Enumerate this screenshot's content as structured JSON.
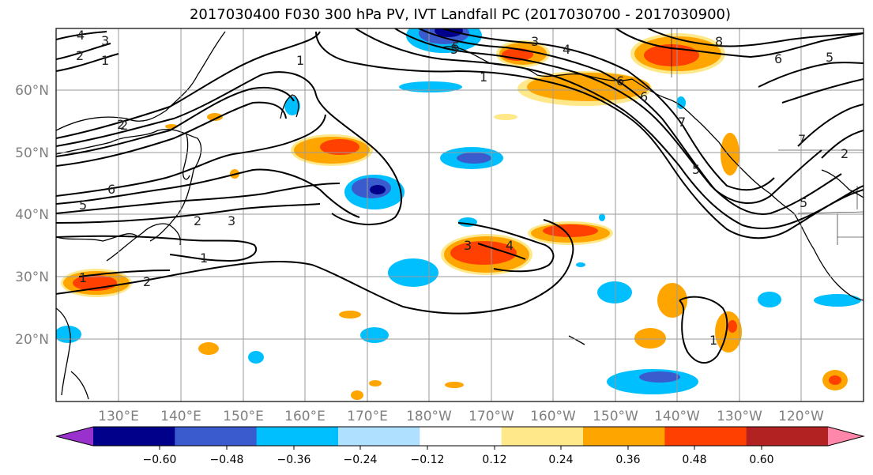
{
  "title": "2017030400 F030 300 hPa PV, IVT Landfall PC (2017030700 - 2017030900)",
  "lon_labels": [
    "130°E",
    "140°E",
    "150°E",
    "160°E",
    "170°E",
    "180°W",
    "170°W",
    "160°W",
    "150°W",
    "140°W",
    "130°W",
    "120°W"
  ],
  "lat_labels": [
    "60°N",
    "50°N",
    "40°N",
    "30°N",
    "20°N"
  ],
  "colorbar": {
    "ticks": [
      "−0.60",
      "−0.48",
      "−0.36",
      "−0.24",
      "−0.12",
      "0.12",
      "0.24",
      "0.36",
      "0.48",
      "0.60"
    ],
    "colors": [
      "#9932cc",
      "#00008b",
      "#3a5bcd",
      "#00bfff",
      "#b0e0ff",
      "#ffffff",
      "#ffe88a",
      "#ffa500",
      "#ff4000",
      "#b22222",
      "#ff88aa"
    ]
  },
  "contour_labels": [
    "4",
    "3",
    "2",
    "1",
    "1",
    "3",
    "4",
    "5",
    "6",
    "2",
    "1",
    "2",
    "3",
    "5",
    "6",
    "1",
    "2",
    "4",
    "3",
    "1",
    "2",
    "6",
    "7",
    "5",
    "5",
    "8",
    "6",
    "5",
    "7",
    "2",
    "1",
    "5"
  ]
}
